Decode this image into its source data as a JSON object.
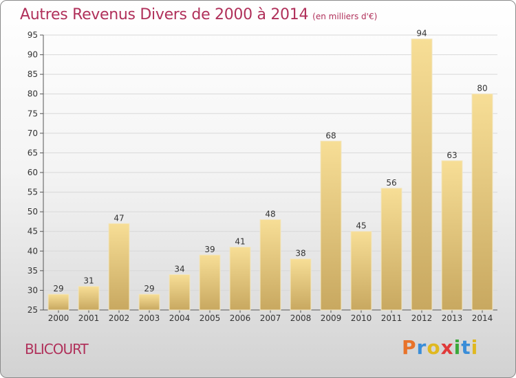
{
  "title": "Autres Revenus Divers de 2000 à 2014",
  "unit": "(en milliers d'€)",
  "commune": "BLICOURT",
  "logo": {
    "letters": [
      "P",
      "r",
      "o",
      "x",
      "i",
      "t",
      "i"
    ],
    "colors": [
      "#e8732a",
      "#3a8dd8",
      "#e0b820",
      "#e03a3a",
      "#3aa83a",
      "#3a8dd8",
      "#e0b820"
    ]
  },
  "colors": {
    "bar_top": "#f7de96",
    "bar_bottom": "#c8a860",
    "title": "#b0305a"
  },
  "chart_data": {
    "type": "bar",
    "categories": [
      "2000",
      "2001",
      "2002",
      "2003",
      "2004",
      "2005",
      "2006",
      "2007",
      "2008",
      "2009",
      "2010",
      "2011",
      "2012",
      "2013",
      "2014"
    ],
    "values": [
      29,
      31,
      47,
      29,
      34,
      39,
      41,
      48,
      38,
      68,
      45,
      56,
      94,
      63,
      80
    ],
    "ylim": [
      25,
      95
    ],
    "yticks": [
      25,
      30,
      35,
      40,
      45,
      50,
      55,
      60,
      65,
      70,
      75,
      80,
      85,
      90,
      95
    ],
    "grid": true,
    "xlabel": "",
    "ylabel": ""
  }
}
